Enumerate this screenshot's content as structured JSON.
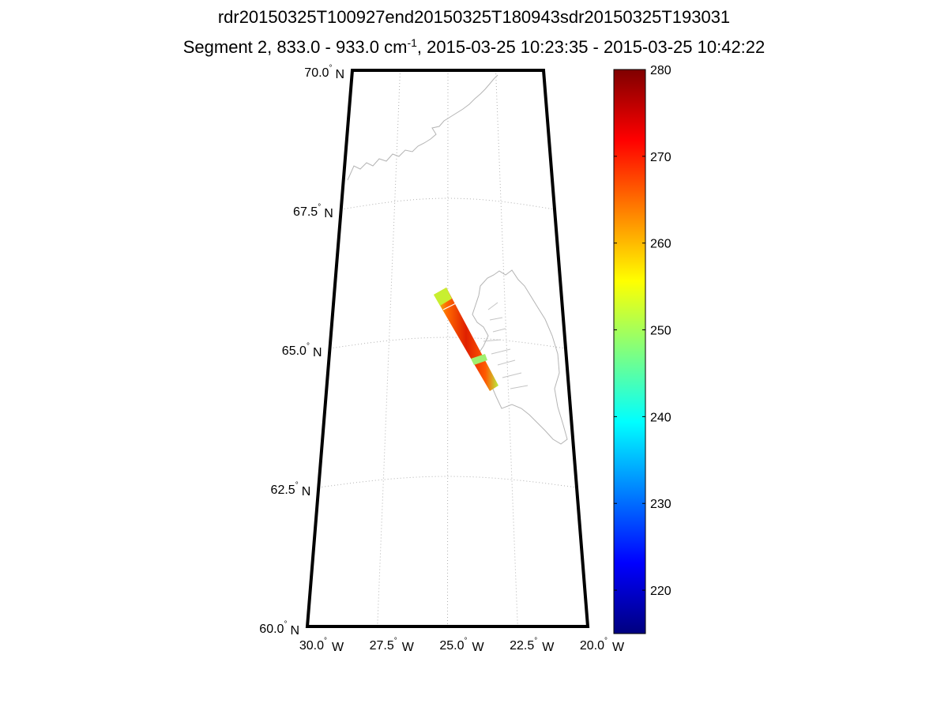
{
  "title_line1": "rdr20150325T100927end20150325T180943sdr20150325T193031",
  "title_line2_prefix": "Segment 2, 833.0 - 933.0 cm",
  "title_line2_sup": "-1",
  "title_line2_suffix": ", 2015-03-25 10:23:35 - 2015-03-25 10:42:22",
  "map": {
    "lat_labels": [
      {
        "deg": "70.0",
        "hemi": "N",
        "lat": 70.0
      },
      {
        "deg": "67.5",
        "hemi": "N",
        "lat": 67.5
      },
      {
        "deg": "65.0",
        "hemi": "N",
        "lat": 65.0
      },
      {
        "deg": "62.5",
        "hemi": "N",
        "lat": 62.5
      },
      {
        "deg": "60.0",
        "hemi": "N",
        "lat": 60.0
      }
    ],
    "lon_labels": [
      {
        "deg": "30.0",
        "hemi": "W",
        "lon": -30.0
      },
      {
        "deg": "27.5",
        "hemi": "W",
        "lon": -27.5
      },
      {
        "deg": "25.0",
        "hemi": "W",
        "lon": -25.0
      },
      {
        "deg": "22.5",
        "hemi": "W",
        "lon": -22.5
      },
      {
        "deg": "20.0",
        "hemi": "W",
        "lon": -20.0
      }
    ],
    "lat_range": [
      60.0,
      70.0
    ],
    "lon_range": [
      -30.0,
      -20.0
    ],
    "grid": "dotted",
    "coastline_color": "#b4b4b4",
    "frame_color": "#000000"
  },
  "colorbar": {
    "min": 215,
    "max": 280,
    "ticks": [
      220,
      230,
      240,
      250,
      260,
      270,
      280
    ],
    "colormap": "jet",
    "location": "right"
  },
  "swath": {
    "start": {
      "lat": 66.0,
      "lon": -25.0
    },
    "end": {
      "lat": 64.3,
      "lon": -23.3
    },
    "dominant_value": 272,
    "edge_value": 250
  }
}
